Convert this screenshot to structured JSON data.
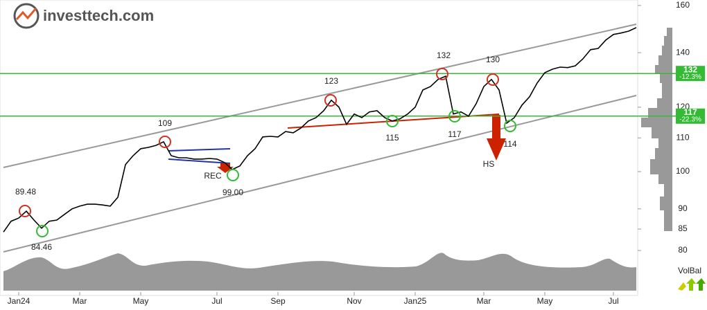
{
  "logo": "investtech.com",
  "chart_data": {
    "type": "line",
    "categories": [
      null,
      null,
      "Jan24",
      null,
      null,
      null,
      null,
      null,
      null,
      null,
      "Mar",
      null,
      null,
      null,
      null,
      null,
      null,
      null,
      "May",
      null,
      null,
      null,
      null,
      null,
      null,
      null,
      null,
      null,
      "Jul",
      null,
      null,
      null,
      null,
      null,
      null,
      null,
      "Sep",
      null,
      null,
      null,
      null,
      null,
      null,
      null,
      null,
      null,
      "Nov",
      null,
      null,
      null,
      null,
      null,
      null,
      null,
      "Jan25",
      null,
      null,
      null,
      null,
      null,
      null,
      null,
      null,
      "Mar",
      null,
      null,
      null,
      null,
      null,
      null,
      null,
      "May",
      null,
      null,
      null,
      null,
      null,
      null,
      null,
      null,
      "Jul",
      null,
      null,
      null
    ],
    "values": [
      84.3,
      86.9,
      87.7,
      89.4,
      87.2,
      85.2,
      86.9,
      87.2,
      88.6,
      90.0,
      90.7,
      91.2,
      91.2,
      91.0,
      90.7,
      93.0,
      102.0,
      104.6,
      106.7,
      107.1,
      107.7,
      108.8,
      104.6,
      104.0,
      104.0,
      103.6,
      103.6,
      103.8,
      103.6,
      102.6,
      100.6,
      101.6,
      104.6,
      106.7,
      110.3,
      110.5,
      110.3,
      112.0,
      111.6,
      113.1,
      115.4,
      116.5,
      118.8,
      122.4,
      120.0,
      114.3,
      117.7,
      116.5,
      118.4,
      118.8,
      116.5,
      115.4,
      116.1,
      117.7,
      120.0,
      126.0,
      127.2,
      129.8,
      131.0,
      117.7,
      118.4,
      117.0,
      121.2,
      127.2,
      129.8,
      126.0,
      114.7,
      116.5,
      120.7,
      123.6,
      128.5,
      132.3,
      133.6,
      134.4,
      134.2,
      134.9,
      137.6,
      141.2,
      141.7,
      145.1,
      147.4,
      148.0,
      148.8,
      150.3
    ],
    "color": "#000000",
    "log_scale": true,
    "ylim": [
      80,
      162.5
    ],
    "yticks": [
      80,
      85,
      90,
      100,
      110,
      120,
      140,
      160
    ],
    "grid": false,
    "levels": [
      {
        "value": 132,
        "change": "-12.3%",
        "color": "#33bb33"
      },
      {
        "value": 117,
        "change": "-22.3%",
        "color": "#33bb33"
      }
    ],
    "annotations": [
      "89.48",
      "84.46",
      "109",
      "99.00",
      "123",
      "115",
      "132",
      "117",
      "130",
      "114",
      "REC",
      "HS"
    ],
    "volume_label": "VolBal"
  }
}
